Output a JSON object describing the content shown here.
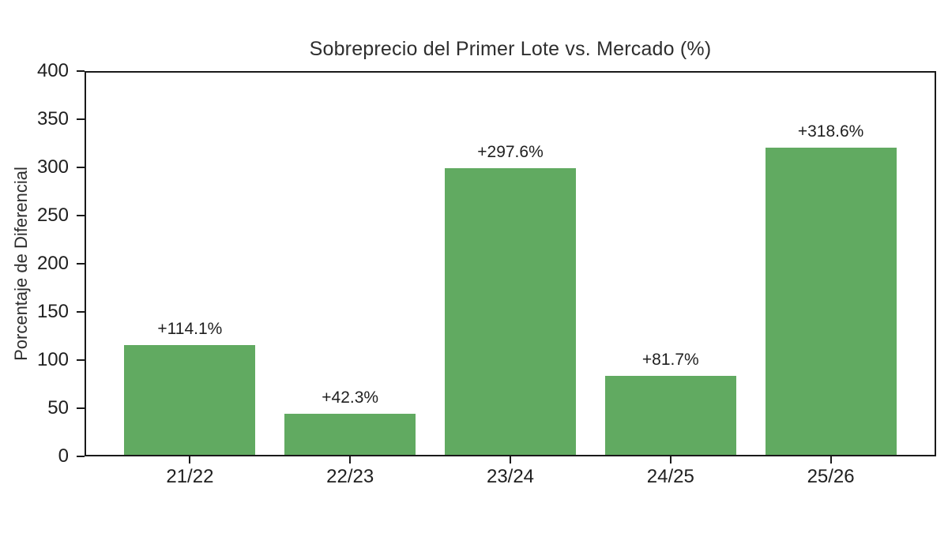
{
  "chart_data": {
    "type": "bar",
    "title": "Sobreprecio del Primer Lote vs. Mercado (%)",
    "xlabel": "",
    "ylabel": "Porcentaje de Diferencial",
    "categories": [
      "21/22",
      "22/23",
      "23/24",
      "24/25",
      "25/26"
    ],
    "values": [
      114.1,
      42.3,
      297.6,
      81.7,
      318.6
    ],
    "bar_labels": [
      "+114.1%",
      "+42.3%",
      "+297.6%",
      "+81.7%",
      "+318.6%"
    ],
    "ylim": [
      0,
      400
    ],
    "yticks": [
      0,
      50,
      100,
      150,
      200,
      250,
      300,
      350,
      400
    ],
    "grid": false,
    "legend": "none",
    "colors": {
      "bar": "#61aa61",
      "axis": "#1a1a1a",
      "text": "#1f1f1f"
    }
  }
}
